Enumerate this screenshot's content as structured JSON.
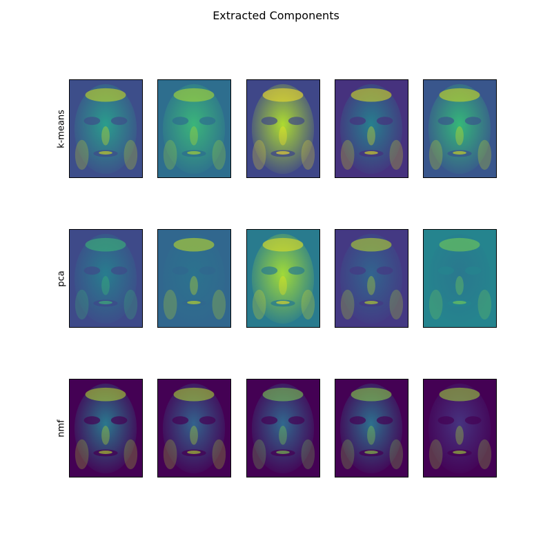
{
  "figure": {
    "title": "Extracted Components"
  },
  "chart_data": {
    "type": "heatmap",
    "title": "Extracted Components",
    "colormap": "viridis",
    "grid": false,
    "ticks": false,
    "rows": [
      "k-means",
      "pca",
      "nmf"
    ],
    "components_per_row": 5,
    "content": "face-shaped component images (no axis ticks or numeric labels shown)",
    "panels": [
      {
        "row": "k-means",
        "index": 0,
        "background": "#3d4e8a",
        "face": "#2a9d8c",
        "highlight": "#d4e11a"
      },
      {
        "row": "k-means",
        "index": 1,
        "background": "#2e6e8e",
        "face": "#3bb57a",
        "highlight": "#b5de2b"
      },
      {
        "row": "k-means",
        "index": 2,
        "background": "#3f4788",
        "face": "#addc30",
        "highlight": "#fde725"
      },
      {
        "row": "k-means",
        "index": 3,
        "background": "#46327e",
        "face": "#277f8e",
        "highlight": "#e1e41c"
      },
      {
        "row": "k-means",
        "index": 4,
        "background": "#39568c",
        "face": "#35b779",
        "highlight": "#d8e219"
      },
      {
        "row": "pca",
        "index": 0,
        "background": "#3e4a89",
        "face": "#287d8e",
        "highlight": "#3dbc74"
      },
      {
        "row": "pca",
        "index": 1,
        "background": "#31678e",
        "face": "#2c728e",
        "highlight": "#c8e020"
      },
      {
        "row": "pca",
        "index": 2,
        "background": "#297b8e",
        "face": "#a0da39",
        "highlight": "#f1e51d"
      },
      {
        "row": "pca",
        "index": 3,
        "background": "#443983",
        "face": "#32648e",
        "highlight": "#bddf26"
      },
      {
        "row": "pca",
        "index": 4,
        "background": "#25848e",
        "face": "#2a788e",
        "highlight": "#7ad151"
      },
      {
        "row": "nmf",
        "index": 0,
        "background": "#440154",
        "face": "#2a788e",
        "highlight": "#b8de29"
      },
      {
        "row": "nmf",
        "index": 1,
        "background": "#440154",
        "face": "#33638d",
        "highlight": "#b2dd2d"
      },
      {
        "row": "nmf",
        "index": 2,
        "background": "#440154",
        "face": "#31688e",
        "highlight": "#7fd34e"
      },
      {
        "row": "nmf",
        "index": 3,
        "background": "#440154",
        "face": "#2d708e",
        "highlight": "#8fd744"
      },
      {
        "row": "nmf",
        "index": 4,
        "background": "#440154",
        "face": "#46337f",
        "highlight": "#a2da37"
      }
    ]
  }
}
